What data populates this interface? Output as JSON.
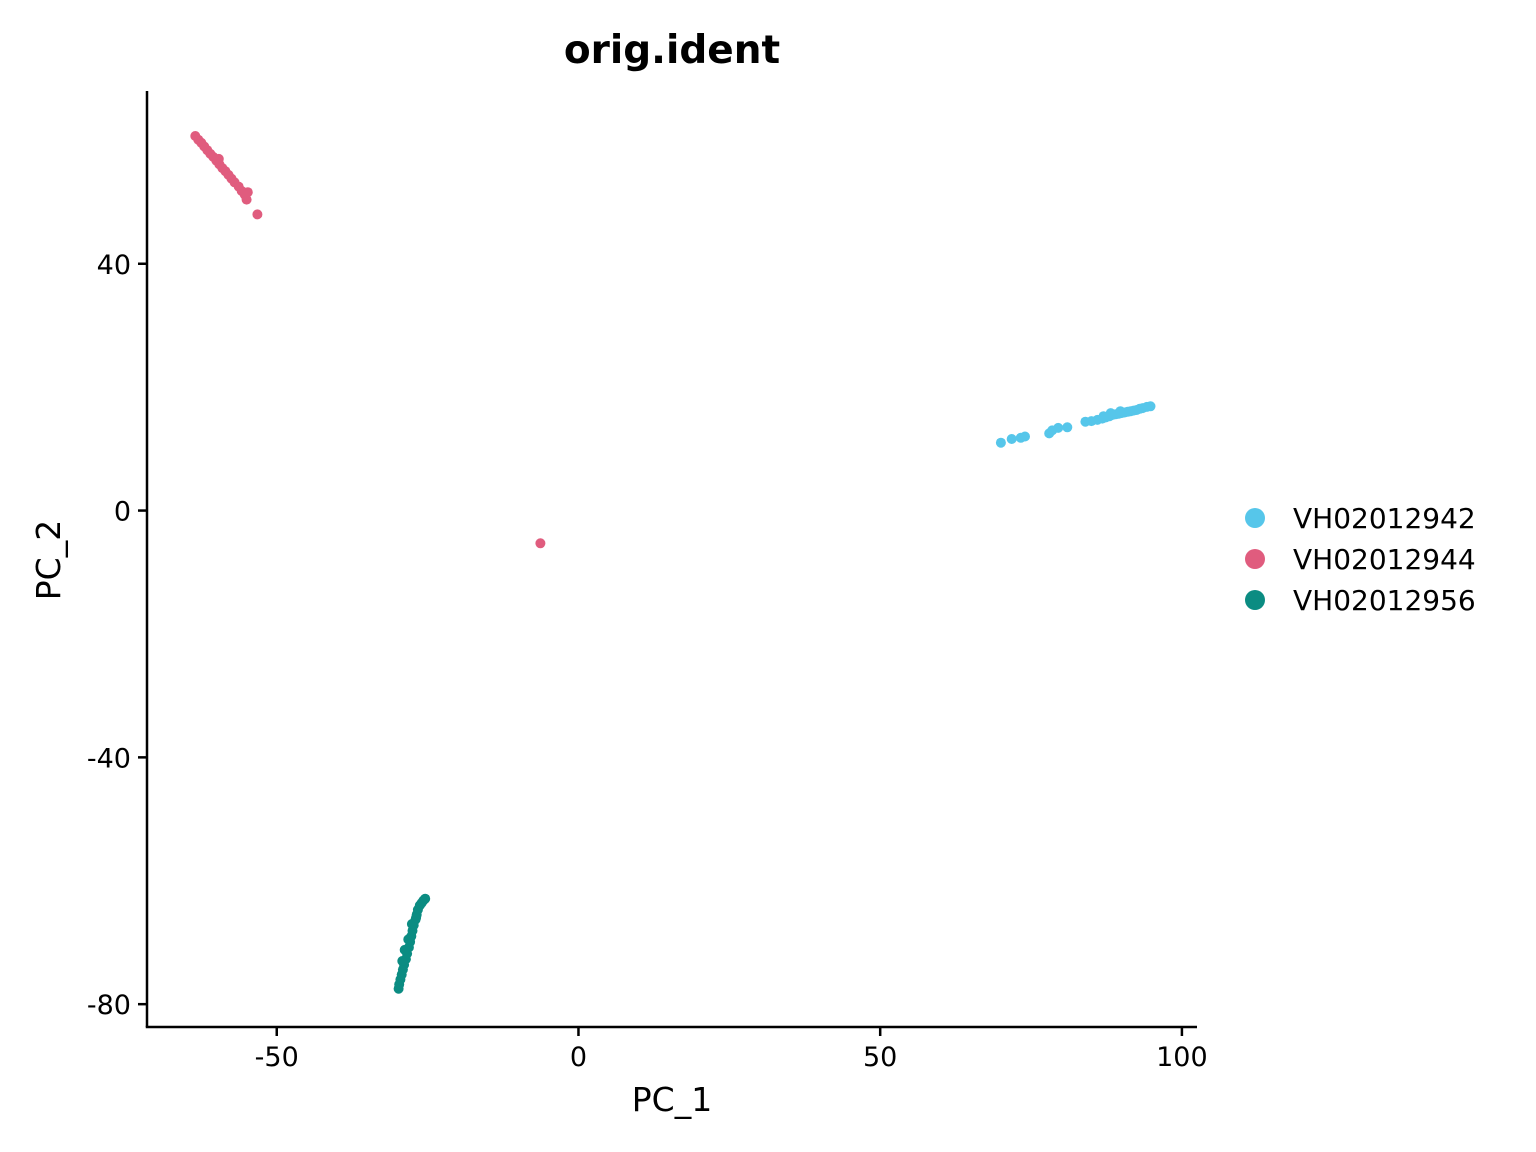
{
  "chart_data": {
    "type": "scatter",
    "title": "orig.ident",
    "xlabel": "PC_1",
    "ylabel": "PC_2",
    "xlim": [
      -71.5,
      102.5
    ],
    "ylim": [
      -83.7,
      68
    ],
    "x_ticks": [
      {
        "value": -50,
        "label": "-50"
      },
      {
        "value": 0,
        "label": "0"
      },
      {
        "value": 50,
        "label": "50"
      },
      {
        "value": 100,
        "label": "100"
      }
    ],
    "y_ticks": [
      {
        "value": 40,
        "label": "40"
      },
      {
        "value": 0,
        "label": "0"
      },
      {
        "value": -40,
        "label": "-40"
      },
      {
        "value": -80,
        "label": "-80"
      }
    ],
    "grid": false,
    "legend_position": "right",
    "series": [
      {
        "name": "VH02012942",
        "color": "#56C6EA",
        "points": [
          [
            70.0,
            11.0
          ],
          [
            71.8,
            11.6
          ],
          [
            73.3,
            11.8
          ],
          [
            74.0,
            12.0
          ],
          [
            78.0,
            12.5
          ],
          [
            78.5,
            13.0
          ],
          [
            79.5,
            13.4
          ],
          [
            81.0,
            13.5
          ],
          [
            84.0,
            14.4
          ],
          [
            85.0,
            14.5
          ],
          [
            86.0,
            14.7
          ],
          [
            86.8,
            14.9
          ],
          [
            87.4,
            15.1
          ],
          [
            88.0,
            15.3
          ],
          [
            88.5,
            15.5
          ],
          [
            89.0,
            15.6
          ],
          [
            89.5,
            15.7
          ],
          [
            90.0,
            15.8
          ],
          [
            90.5,
            15.9
          ],
          [
            91.0,
            16.0
          ],
          [
            91.5,
            16.1
          ],
          [
            92.0,
            16.2
          ],
          [
            92.5,
            16.3
          ],
          [
            93.0,
            16.5
          ],
          [
            93.5,
            16.6
          ],
          [
            94.2,
            16.8
          ],
          [
            94.8,
            16.9
          ],
          [
            88.2,
            15.8
          ],
          [
            89.8,
            16.1
          ],
          [
            87.0,
            15.3
          ]
        ]
      },
      {
        "name": "VH02012944",
        "color": "#E05C7E",
        "points": [
          [
            -63.5,
            60.7
          ],
          [
            -63.0,
            60.1
          ],
          [
            -62.5,
            59.6
          ],
          [
            -62.0,
            59.0
          ],
          [
            -61.5,
            58.4
          ],
          [
            -61.0,
            57.8
          ],
          [
            -60.5,
            57.3
          ],
          [
            -60.0,
            56.7
          ],
          [
            -59.5,
            56.1
          ],
          [
            -59.0,
            55.5
          ],
          [
            -58.5,
            55.0
          ],
          [
            -58.0,
            54.4
          ],
          [
            -57.5,
            53.8
          ],
          [
            -57.0,
            53.2
          ],
          [
            -56.3,
            52.5
          ],
          [
            -55.8,
            51.8
          ],
          [
            -55.3,
            51.2
          ],
          [
            -55.0,
            50.4
          ],
          [
            -54.8,
            51.6
          ],
          [
            -59.6,
            57.0
          ],
          [
            -53.2,
            48.0
          ],
          [
            -6.3,
            -5.3
          ]
        ]
      },
      {
        "name": "VH02012956",
        "color": "#0B8C82",
        "points": [
          [
            -29.8,
            -77.5
          ],
          [
            -29.7,
            -76.8
          ],
          [
            -29.5,
            -76.0
          ],
          [
            -29.3,
            -75.2
          ],
          [
            -29.1,
            -74.4
          ],
          [
            -28.9,
            -73.6
          ],
          [
            -28.6,
            -72.7
          ],
          [
            -28.4,
            -71.8
          ],
          [
            -28.1,
            -70.8
          ],
          [
            -27.9,
            -69.9
          ],
          [
            -27.7,
            -69.0
          ],
          [
            -27.5,
            -68.1
          ],
          [
            -27.3,
            -67.2
          ],
          [
            -27.0,
            -66.3
          ],
          [
            -26.8,
            -65.5
          ],
          [
            -26.6,
            -64.7
          ],
          [
            -26.3,
            -64.0
          ],
          [
            -26.0,
            -63.6
          ],
          [
            -25.7,
            -63.2
          ],
          [
            -25.4,
            -62.9
          ],
          [
            -27.6,
            -67.0
          ],
          [
            -28.2,
            -69.5
          ],
          [
            -28.8,
            -71.2
          ],
          [
            -29.2,
            -73.0
          ],
          [
            -26.9,
            -66.0
          ]
        ]
      }
    ]
  }
}
